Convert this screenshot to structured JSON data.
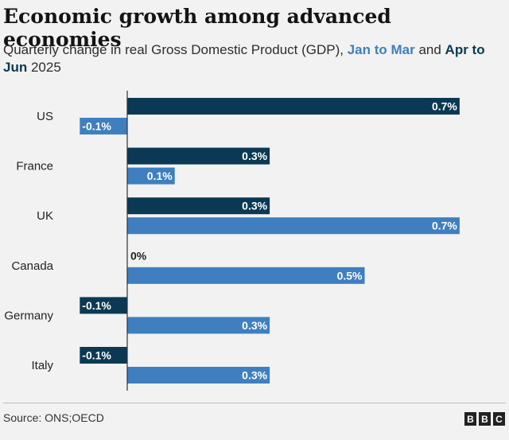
{
  "header": {
    "title": "Economic growth among advanced economies",
    "subtitle_prefix": "Quarterly change in real Gross Domestic Product (GDP), ",
    "subtitle_series1": "Jan to Mar",
    "subtitle_and": " and ",
    "subtitle_series2": "Apr to Jun",
    "subtitle_suffix": " 2025"
  },
  "colors": {
    "q1": "#0b3954",
    "q2": "#3f7fbf",
    "background": "#f2f2f2"
  },
  "chart_data": {
    "type": "bar",
    "orientation": "horizontal",
    "title": "Economic growth among advanced economies",
    "subtitle": "Quarterly change in real Gross Domestic Product (GDP), Jan to Mar and Apr to Jun 2025",
    "categories": [
      "US",
      "France",
      "UK",
      "Canada",
      "Germany",
      "Italy"
    ],
    "series": [
      {
        "name": "Jan to Mar",
        "values": [
          0.7,
          0.3,
          0.3,
          0,
          -0.1,
          -0.1
        ],
        "labels": [
          "0.7%",
          "0.3%",
          "0.3%",
          "0%",
          "-0.1%",
          "-0.1%"
        ]
      },
      {
        "name": "Apr to Jun",
        "values": [
          -0.1,
          0.1,
          0.7,
          0.5,
          0.3,
          0.3
        ],
        "labels": [
          "-0.1%",
          "0.1%",
          "0.7%",
          "0.5%",
          "0.3%",
          "0.3%"
        ]
      }
    ],
    "xlim": [
      -0.2,
      0.8
    ],
    "unit": "%"
  },
  "footer": {
    "source": "Source: ONS;OECD",
    "logo_letters": [
      "B",
      "B",
      "C"
    ]
  }
}
